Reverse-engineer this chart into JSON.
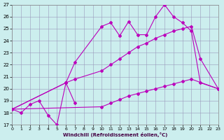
{
  "xlabel": "Windchill (Refroidissement éolien,°C)",
  "bg_color": "#cceeee",
  "line_color": "#bb00bb",
  "grid_color": "#9999bb",
  "xlim": [
    0,
    23
  ],
  "ylim": [
    17,
    27
  ],
  "xticks": [
    0,
    1,
    2,
    3,
    4,
    5,
    6,
    7,
    8,
    9,
    10,
    11,
    12,
    13,
    14,
    15,
    16,
    17,
    18,
    19,
    20,
    21,
    22,
    23
  ],
  "yticks": [
    17,
    18,
    19,
    20,
    21,
    22,
    23,
    24,
    25,
    26,
    27
  ],
  "line1_x": [
    0,
    1,
    2,
    3,
    4,
    5,
    6,
    7
  ],
  "line1_y": [
    18.3,
    18.0,
    18.7,
    19.0,
    17.8,
    17.0,
    20.5,
    18.8
  ],
  "line2_x": [
    0,
    6,
    7,
    10,
    11,
    12,
    13,
    14,
    15,
    16,
    17,
    18,
    19,
    20,
    21,
    23
  ],
  "line2_y": [
    18.3,
    20.5,
    22.2,
    25.2,
    25.5,
    24.4,
    25.6,
    24.5,
    24.5,
    26.0,
    27.0,
    26.0,
    25.5,
    24.8,
    20.5,
    20.0
  ],
  "line3_x": [
    0,
    6,
    7,
    10,
    11,
    12,
    13,
    14,
    15,
    16,
    17,
    18,
    19,
    20,
    21,
    23
  ],
  "line3_y": [
    18.3,
    20.5,
    20.8,
    21.5,
    22.0,
    22.5,
    23.0,
    23.5,
    23.8,
    24.2,
    24.5,
    24.8,
    25.0,
    25.2,
    22.5,
    20.0
  ],
  "line4_x": [
    0,
    10,
    11,
    12,
    13,
    14,
    15,
    16,
    17,
    18,
    19,
    20,
    23
  ],
  "line4_y": [
    18.3,
    18.5,
    18.8,
    19.1,
    19.4,
    19.6,
    19.8,
    20.0,
    20.2,
    20.4,
    20.6,
    20.8,
    20.0
  ]
}
